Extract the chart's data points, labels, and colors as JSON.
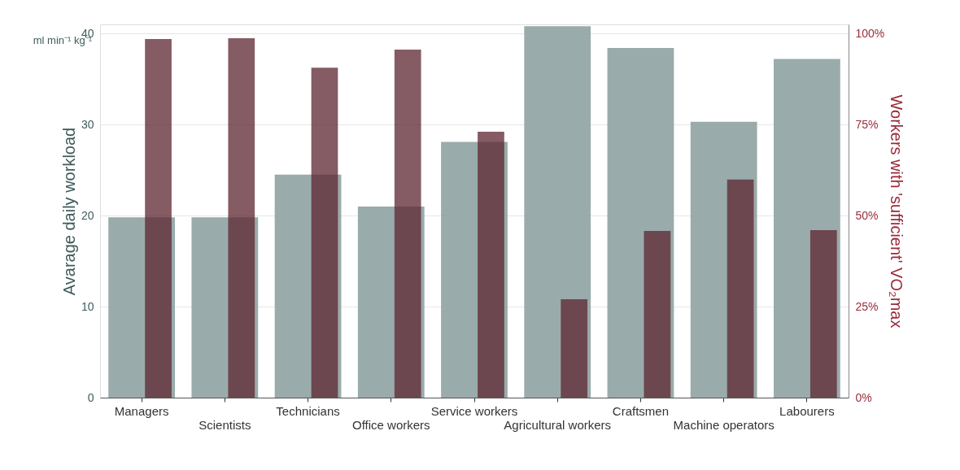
{
  "chart_data": {
    "type": "bar",
    "categories": [
      "Managers",
      "Scientists",
      "Technicians",
      "Office workers",
      "Service workers",
      "Agricultural workers",
      "Craftsmen",
      "Machine operators",
      "Labourers"
    ],
    "series": [
      {
        "color": "#95a6a6",
        "values": [
          19.8,
          19.8,
          24.5,
          21.0,
          28.1,
          40.8,
          38.4,
          30.3,
          37.2
        ]
      },
      {
        "color": "#5c2630",
        "axis": "y2",
        "values": [
          98.5,
          98.7,
          90.6,
          95.6,
          73.0,
          27.0,
          45.8,
          59.9,
          46.0
        ]
      }
    ],
    "ylabel": "Avarage daily workload",
    "y2label": "Workers with 'sufficient'  VO₂max",
    "ylim": [
      0,
      41
    ],
    "yticks": [
      0,
      10,
      20,
      30,
      40
    ],
    "y2lim": [
      0,
      102.5
    ],
    "y2ticks": [
      {
        "value": 0,
        "label": "0%"
      },
      {
        "value": 25,
        "label": "25%"
      },
      {
        "value": 50,
        "label": "50%"
      },
      {
        "value": 75,
        "label": "75%"
      },
      {
        "value": 100,
        "label": "100%"
      }
    ],
    "annotations": [
      "ml min⁻¹ kg⁻¹"
    ],
    "grid": "y"
  }
}
